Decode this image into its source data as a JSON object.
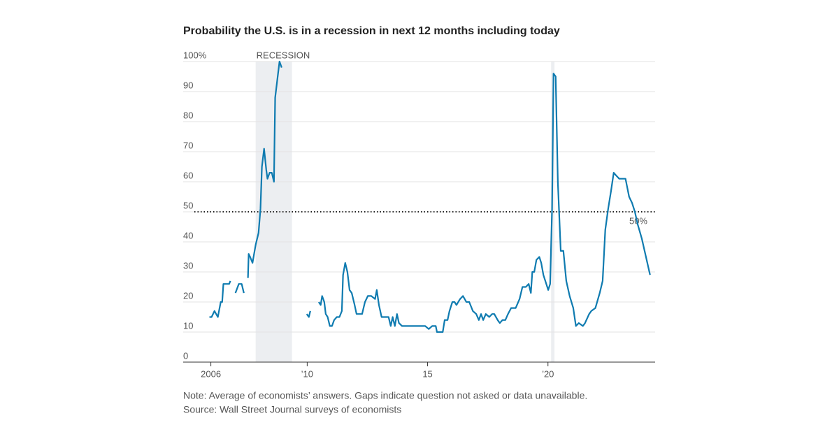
{
  "chart_data": {
    "type": "line",
    "title": "Probability the U.S. is in a recession in next 12 months including today",
    "note": "Note: Average of economists’ answers. Gaps indicate question not asked or data unavailable.",
    "source": "Source: Wall Street Journal surveys of economists",
    "color": "#0f7bb0",
    "x": [
      2005.94,
      2006.03,
      2006.15,
      2006.29,
      2006.41,
      2006.47,
      2006.52,
      2006.76,
      2006.81,
      2006.9,
      2007.02,
      2007.16,
      2007.28,
      2007.37,
      2007.45,
      2007.54,
      2007.57,
      2007.63,
      2007.73,
      2007.86,
      2007.98,
      2008.06,
      2008.12,
      2008.21,
      2008.3,
      2008.35,
      2008.44,
      2008.53,
      2008.62,
      2008.67,
      2008.76,
      2008.85,
      2008.94,
      2009.5,
      2009.98,
      2010.07,
      2010.13,
      2010.3,
      2010.48,
      2010.56,
      2010.62,
      2010.71,
      2010.77,
      2010.85,
      2010.94,
      2011.03,
      2011.12,
      2011.23,
      2011.34,
      2011.44,
      2011.49,
      2011.58,
      2011.67,
      2011.76,
      2011.85,
      2011.97,
      2012.05,
      2012.28,
      2012.4,
      2012.52,
      2012.66,
      2012.82,
      2012.89,
      2012.98,
      2013.09,
      2013.21,
      2013.38,
      2013.47,
      2013.55,
      2013.64,
      2013.73,
      2013.81,
      2013.94,
      2014.02,
      2014.14,
      2014.31,
      2014.43,
      2014.55,
      2014.78,
      2014.9,
      2015.05,
      2015.19,
      2015.34,
      2015.39,
      2015.63,
      2015.71,
      2015.83,
      2015.91,
      2016.03,
      2016.12,
      2016.2,
      2016.35,
      2016.47,
      2016.61,
      2016.73,
      2016.88,
      2017.02,
      2017.13,
      2017.22,
      2017.31,
      2017.42,
      2017.56,
      2017.68,
      2017.77,
      2017.91,
      2018.0,
      2018.11,
      2018.23,
      2018.34,
      2018.47,
      2018.66,
      2018.82,
      2018.94,
      2019.08,
      2019.2,
      2019.29,
      2019.35,
      2019.43,
      2019.52,
      2019.64,
      2019.72,
      2019.81,
      2019.93,
      2020.01,
      2020.09,
      2020.17,
      2020.23,
      2020.32,
      2020.41,
      2020.53,
      2020.64,
      2020.76,
      2020.9,
      2021.05,
      2021.16,
      2021.28,
      2021.45,
      2021.54,
      2021.71,
      2021.8,
      2021.97,
      2022.15,
      2022.27,
      2022.38,
      2022.5,
      2022.62,
      2022.73,
      2022.84,
      2022.96,
      2023.1,
      2023.22,
      2023.37,
      2023.49,
      2023.61,
      2023.72,
      2023.9,
      2024.07,
      2024.24
    ],
    "values": [
      15,
      15,
      17,
      15,
      20,
      20,
      26,
      26,
      27,
      null,
      23,
      26,
      26,
      23,
      null,
      28,
      36,
      35,
      33,
      39,
      43,
      51,
      65,
      71,
      64,
      61,
      63,
      63,
      60,
      88,
      94,
      100,
      98,
      null,
      16,
      15,
      17,
      null,
      20,
      19,
      22,
      20,
      16,
      15,
      12,
      12,
      14,
      15,
      15,
      17,
      29,
      33,
      30,
      24,
      23,
      19,
      16,
      16,
      20,
      22,
      22,
      21,
      24,
      19,
      15,
      15,
      15,
      12,
      15,
      12,
      16,
      13,
      12,
      12,
      12,
      12,
      12,
      12,
      12,
      12,
      11,
      12,
      12,
      10,
      10,
      14,
      14,
      17,
      20,
      20,
      19,
      21,
      22,
      20,
      20,
      17,
      16,
      14,
      16,
      14,
      16,
      15,
      16,
      16,
      14,
      13,
      14,
      14,
      16,
      18,
      18,
      21,
      25,
      25,
      26,
      23,
      30,
      30,
      34,
      35,
      33,
      29,
      26,
      24,
      26,
      51,
      96,
      95,
      60,
      37,
      37,
      27,
      22,
      18,
      12,
      13,
      12,
      13,
      16,
      17,
      18,
      23,
      27,
      44,
      51,
      57,
      63,
      62,
      61,
      61,
      61,
      55,
      53,
      50,
      46,
      41,
      35,
      29
    ],
    "xlim": [
      2004.85,
      2024.45
    ],
    "xticks": [
      2006,
      {
        "value": 2010,
        "label": "’10"
      },
      {
        "value": 2015,
        "label": "15"
      },
      {
        "value": 2020,
        "label": "’20"
      }
    ],
    "ylim": [
      0,
      100
    ],
    "yticks": [
      0,
      10,
      20,
      30,
      40,
      50,
      60,
      70,
      80,
      90,
      {
        "value": 100,
        "label": "100%"
      }
    ],
    "grid": true,
    "recessions": [
      {
        "start": 2007.86,
        "end": 2009.37,
        "label": "RECESSION"
      },
      {
        "start": 2020.13,
        "end": 2020.27
      }
    ],
    "reference_line": {
      "value": 50,
      "label": "50%"
    }
  }
}
